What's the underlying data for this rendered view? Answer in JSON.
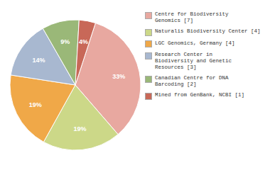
{
  "chart_data": {
    "type": "pie",
    "categories": [
      "Centre for Biodiversity\nGenomics [7]",
      "Naturalis Biodiversity Center [4]",
      "LGC Genomics, Germany [4]",
      "Research Center in\nBiodiversity and Genetic\nResources [3]",
      "Canadian Centre for DNA\nBarcoding [2]",
      "Mined from GenBank, NCBI [1]"
    ],
    "values": [
      33,
      19,
      19,
      14,
      9,
      4
    ],
    "value_labels": [
      "33%",
      "19%",
      "19%",
      "14%",
      "9%",
      "4%"
    ],
    "colors": [
      "#e8a8a0",
      "#ccd888",
      "#f0a848",
      "#a8b8d0",
      "#9ab878",
      "#c86858"
    ],
    "data_labels": true,
    "legend": "right"
  }
}
